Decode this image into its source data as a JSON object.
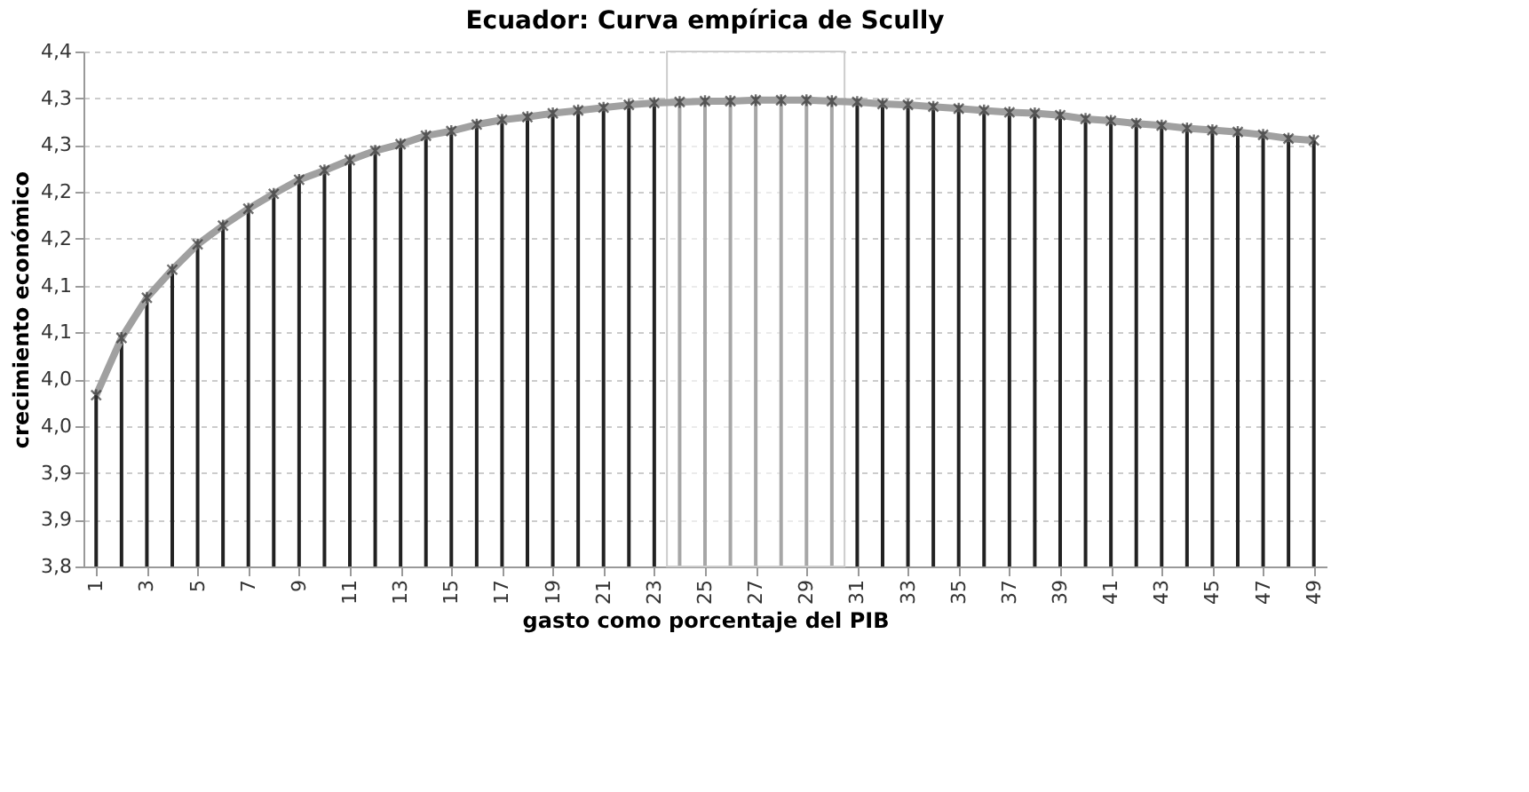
{
  "chart_data": {
    "type": "bar",
    "title": "Ecuador: Curva empírica de Scully",
    "xlabel": "gasto como porcentaje del PIB",
    "ylabel": "crecimiento económico",
    "x": [
      1,
      2,
      3,
      4,
      5,
      6,
      7,
      8,
      9,
      10,
      11,
      12,
      13,
      14,
      15,
      16,
      17,
      18,
      19,
      20,
      21,
      22,
      23,
      24,
      25,
      26,
      27,
      28,
      29,
      30,
      31,
      32,
      33,
      34,
      35,
      36,
      37,
      38,
      39,
      40,
      41,
      42,
      43,
      44,
      45,
      46,
      47,
      48,
      49
    ],
    "xlim": [
      0.5,
      49.5
    ],
    "xticks": [
      1,
      3,
      5,
      7,
      9,
      11,
      13,
      15,
      17,
      19,
      21,
      23,
      25,
      27,
      29,
      31,
      33,
      35,
      37,
      39,
      41,
      43,
      45,
      47,
      49
    ],
    "series": [
      {
        "color": "#222222",
        "values": [
          3.983,
          4.044,
          4.087,
          4.117,
          4.144,
          4.164,
          4.182,
          4.198,
          4.213,
          4.223,
          4.234,
          4.244,
          4.251,
          4.26,
          4.265,
          4.272,
          4.277,
          4.28,
          4.284,
          4.287,
          4.29,
          4.293,
          4.295,
          4.296,
          4.297,
          4.297,
          4.298,
          4.298,
          4.298,
          4.297,
          4.296,
          4.294,
          4.293,
          4.291,
          4.289,
          4.287,
          4.285,
          4.284,
          4.282,
          4.278,
          4.276,
          4.273,
          4.271,
          4.268,
          4.266,
          4.264,
          4.261,
          4.257,
          4.255
        ]
      },
      {
        "type": "line",
        "color": "#a0a0a0",
        "marker": "cross",
        "values": [
          3.983,
          4.044,
          4.087,
          4.117,
          4.144,
          4.164,
          4.182,
          4.198,
          4.213,
          4.223,
          4.234,
          4.244,
          4.251,
          4.26,
          4.265,
          4.272,
          4.277,
          4.28,
          4.284,
          4.287,
          4.29,
          4.293,
          4.295,
          4.296,
          4.297,
          4.297,
          4.298,
          4.298,
          4.298,
          4.297,
          4.296,
          4.294,
          4.293,
          4.291,
          4.289,
          4.287,
          4.285,
          4.284,
          4.282,
          4.278,
          4.276,
          4.273,
          4.271,
          4.268,
          4.266,
          4.264,
          4.261,
          4.257,
          4.255
        ]
      }
    ],
    "bands": [
      {
        "axis": "x",
        "from": 23.5,
        "to": 30.5,
        "color": "#cccccc"
      }
    ],
    "ylim": [
      3.8,
      4.35
    ],
    "yticks": [
      {
        "value": 3.8,
        "label": "3,8"
      },
      {
        "value": 3.85,
        "label": "3,9"
      },
      {
        "value": 3.9,
        "label": "3,9"
      },
      {
        "value": 3.95,
        "label": "4,0"
      },
      {
        "value": 4.0,
        "label": "4,0"
      },
      {
        "value": 4.05,
        "label": "4,1"
      },
      {
        "value": 4.1,
        "label": "4,1"
      },
      {
        "value": 4.15,
        "label": "4,2"
      },
      {
        "value": 4.2,
        "label": "4,2"
      },
      {
        "value": 4.25,
        "label": "4,3"
      },
      {
        "value": 4.3,
        "label": "4,3"
      },
      {
        "value": 4.35,
        "label": "4,4"
      }
    ],
    "grid": "y"
  }
}
